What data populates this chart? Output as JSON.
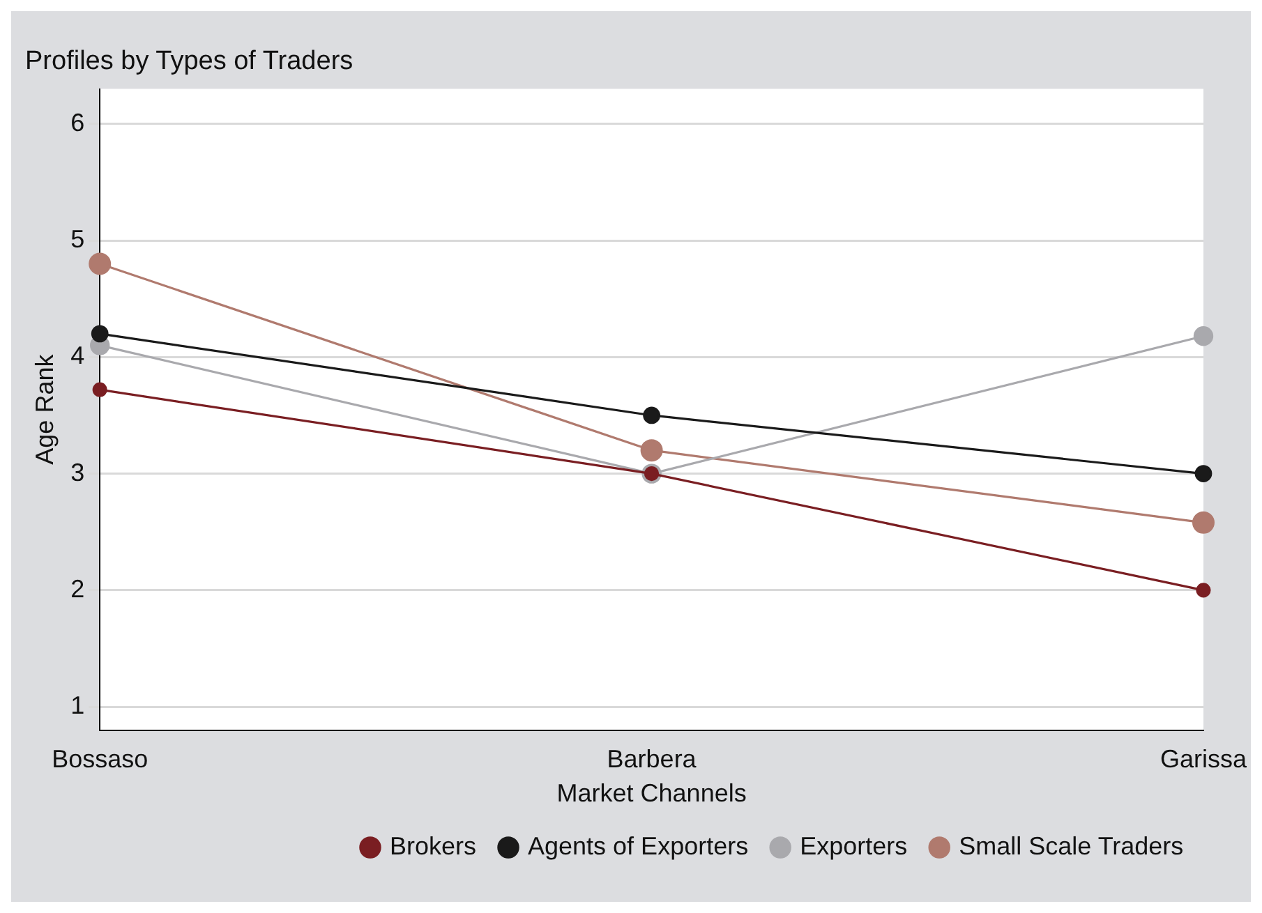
{
  "chart_data": {
    "type": "line",
    "title": "Profiles by Types of Traders",
    "xlabel": "Market Channels",
    "ylabel": "Age Rank",
    "categories": [
      "Bossaso",
      "Barbera",
      "Garissa"
    ],
    "series": [
      {
        "name": "Brokers",
        "color": "#7a1e22",
        "values": [
          3.72,
          3.0,
          2.0
        ]
      },
      {
        "name": "Agents of Exporters",
        "color": "#1a1a1a",
        "values": [
          4.2,
          3.5,
          3.0
        ]
      },
      {
        "name": "Exporters",
        "color": "#a9a9ad",
        "values": [
          4.1,
          3.0,
          4.18
        ]
      },
      {
        "name": "Small Scale Traders",
        "color": "#b07a6e",
        "values": [
          4.8,
          3.2,
          2.58
        ]
      }
    ],
    "ylim": [
      0.8,
      6.3
    ],
    "yticks": [
      1,
      2,
      3,
      4,
      5,
      6
    ],
    "grid": "y",
    "legend": "bottom",
    "marker": "circle",
    "line_style": "solid"
  }
}
